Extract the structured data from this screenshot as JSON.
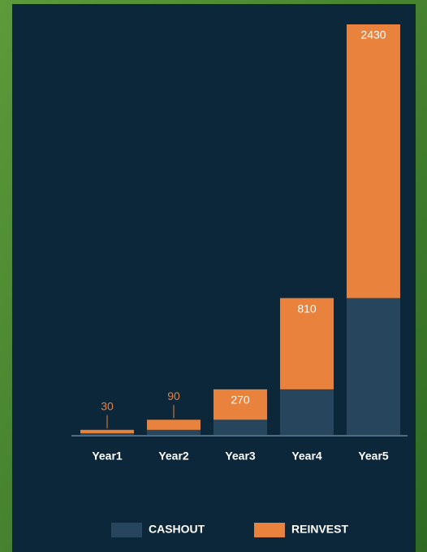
{
  "chart_data": {
    "type": "stacked-bar",
    "categories": [
      "Year1",
      "Year2",
      "Year3",
      "Year4",
      "Year5"
    ],
    "series": [
      {
        "name": "CASHOUT",
        "color": "#27465e",
        "values": [
          10,
          30,
          90,
          270,
          810
        ]
      },
      {
        "name": "REINVEST",
        "color": "#e8823d",
        "values": [
          20,
          60,
          180,
          540,
          1620
        ]
      }
    ],
    "totals": [
      30,
      90,
      270,
      810,
      2430
    ]
  }
}
